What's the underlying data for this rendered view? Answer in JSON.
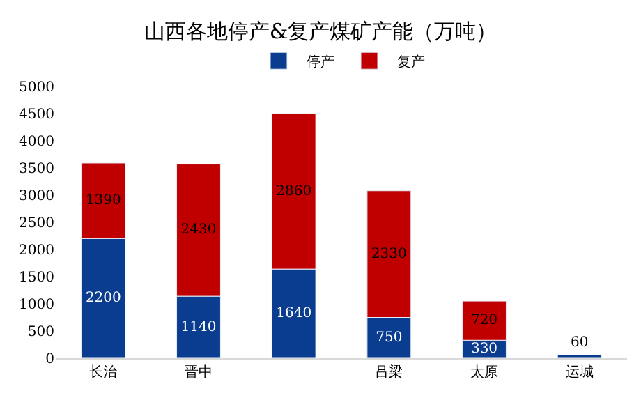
{
  "chart_data": {
    "type": "bar",
    "title": "山西各地停产&复产煤矿产能（万吨）",
    "categories": [
      "长治",
      "晋中",
      null,
      "吕梁",
      "太原",
      "运城"
    ],
    "series": [
      {
        "name": "停产",
        "color": "#0a3d8f",
        "values": [
          2200,
          1140,
          1640,
          750,
          330,
          60
        ]
      },
      {
        "name": "复产",
        "color": "#c00000",
        "values": [
          1390,
          2430,
          2860,
          2330,
          720,
          null
        ]
      }
    ],
    "stacked": true,
    "data_labels": true,
    "ylim": [
      0,
      5000
    ],
    "yticks": [
      0,
      500,
      1000,
      1500,
      2000,
      2500,
      3000,
      3500,
      4000,
      4500,
      5000
    ],
    "legend": "top"
  }
}
